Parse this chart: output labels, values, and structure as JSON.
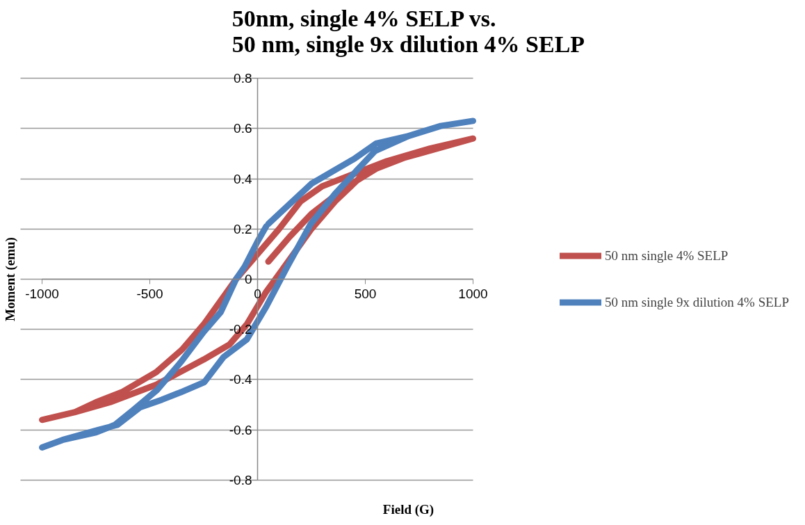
{
  "chart_data": {
    "type": "line",
    "title": "50nm, single 4% SELP vs.\n50 nm, single 9x dilution 4% SELP",
    "xlabel": "Field (G)",
    "ylabel": "Moment (emu)",
    "xlim": [
      -1000,
      1000
    ],
    "xticks": [
      -1000,
      -500,
      0,
      500,
      1000
    ],
    "ylim": [
      -0.8,
      0.8
    ],
    "yticks": [
      -0.8,
      -0.6,
      -0.4,
      -0.2,
      0,
      0.2,
      0.4,
      0.6,
      0.8
    ],
    "grid": "y",
    "legend": "right",
    "marker": "none",
    "line_style": "solid",
    "series": [
      {
        "name": "50 nm single 4% SELP",
        "color": "#c0504d",
        "x": [
          50,
          150,
          250,
          400,
          550,
          700,
          850,
          1000,
          800,
          600,
          450,
          300,
          200,
          100,
          0,
          -100,
          -250,
          -350,
          -470,
          -630,
          -750,
          -850,
          -1000,
          -850,
          -685,
          -470,
          -250,
          -130,
          -50,
          40,
          100,
          250,
          360,
          470,
          580,
          750,
          1000
        ],
        "values": [
          0.07,
          0.17,
          0.26,
          0.36,
          0.44,
          0.49,
          0.53,
          0.56,
          0.52,
          0.47,
          0.42,
          0.37,
          0.31,
          0.2,
          0.1,
          0.0,
          -0.18,
          -0.28,
          -0.37,
          -0.45,
          -0.49,
          -0.53,
          -0.56,
          -0.53,
          -0.49,
          -0.42,
          -0.32,
          -0.26,
          -0.18,
          -0.05,
          0.02,
          0.2,
          0.31,
          0.4,
          0.46,
          0.5,
          0.56
        ]
      },
      {
        "name": "50 nm single 9x dilution 4% SELP",
        "color": "#4f81bd",
        "x": [
          40,
          0,
          -60,
          -100,
          -170,
          -250,
          -356,
          -465,
          -576,
          -662,
          -750,
          -905,
          -1000,
          -905,
          -740,
          -650,
          -545,
          -445,
          -356,
          -247,
          -158,
          -50,
          40,
          138,
          247,
          360,
          468,
          545,
          700,
          850,
          1000,
          850,
          700,
          550,
          450,
          350,
          250,
          100,
          50
        ],
        "values": [
          0.21,
          0.15,
          0.05,
          0.0,
          -0.13,
          -0.21,
          -0.33,
          -0.44,
          -0.52,
          -0.58,
          -0.61,
          -0.64,
          -0.67,
          -0.64,
          -0.6,
          -0.58,
          -0.51,
          -0.48,
          -0.45,
          -0.41,
          -0.31,
          -0.24,
          -0.11,
          0.05,
          0.22,
          0.34,
          0.44,
          0.51,
          0.57,
          0.61,
          0.63,
          0.61,
          0.57,
          0.54,
          0.48,
          0.43,
          0.38,
          0.26,
          0.22
        ]
      }
    ]
  }
}
